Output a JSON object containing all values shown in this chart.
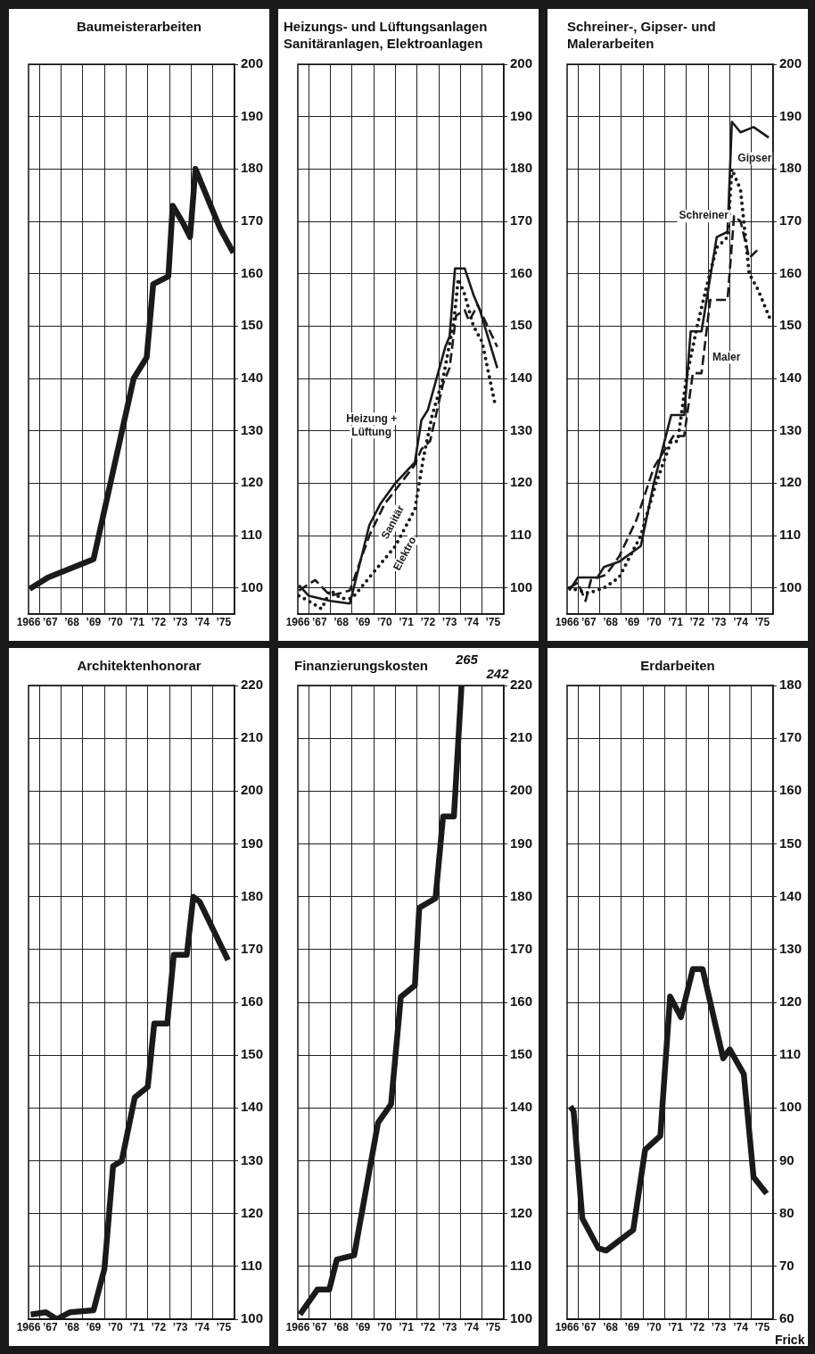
{
  "chart_data": [
    {
      "type": "line",
      "title": "Baumeisterarbeiten",
      "xlim": [
        1966,
        1975.5
      ],
      "ylim": [
        95,
        200
      ],
      "grid": true,
      "xticks": [
        {
          "value": 1966,
          "label": "1966"
        },
        {
          "value": 1966.5,
          "label": null
        },
        {
          "value": 1967,
          "label": "’67"
        },
        {
          "value": 1967.5,
          "label": null
        },
        {
          "value": 1968,
          "label": "’68"
        },
        {
          "value": 1968.5,
          "label": null
        },
        {
          "value": 1969,
          "label": "’69"
        },
        {
          "value": 1969.5,
          "label": null
        },
        {
          "value": 1970,
          "label": "’70"
        },
        {
          "value": 1970.5,
          "label": null
        },
        {
          "value": 1971,
          "label": "’71"
        },
        {
          "value": 1971.5,
          "label": null
        },
        {
          "value": 1972,
          "label": "’72"
        },
        {
          "value": 1972.5,
          "label": null
        },
        {
          "value": 1973,
          "label": "’73"
        },
        {
          "value": 1973.5,
          "label": null
        },
        {
          "value": 1974,
          "label": "’74"
        },
        {
          "value": 1974.5,
          "label": null
        },
        {
          "value": 1975,
          "label": "’75"
        },
        {
          "value": 1975.5,
          "label": null
        }
      ],
      "yticks": [
        100,
        110,
        120,
        130,
        140,
        150,
        160,
        170,
        180,
        190,
        200
      ],
      "series": [
        {
          "color": "#1a1a1a",
          "line_style": "solid",
          "x": [
            1966.05,
            1966.9,
            1969.0,
            1970.85,
            1971.45,
            1971.75,
            1972.45,
            1972.65,
            1973.15,
            1973.45,
            1973.7,
            1974.35,
            1974.85,
            1975.45
          ],
          "values": [
            99.8,
            102,
            105.5,
            140,
            144,
            158,
            159.5,
            173,
            169.5,
            167,
            180,
            173.5,
            168.5,
            164
          ]
        }
      ]
    },
    {
      "type": "line",
      "title": "Heizungs- und Lüftungsanlagen Sanitäranlagen, Elektroanlagen",
      "xlim": [
        1966,
        1975.5
      ],
      "ylim": [
        95,
        200
      ],
      "grid": true,
      "xticks": [
        {
          "value": 1966,
          "label": "1966"
        },
        {
          "value": 1966.5,
          "label": null
        },
        {
          "value": 1967,
          "label": "’67"
        },
        {
          "value": 1967.5,
          "label": null
        },
        {
          "value": 1968,
          "label": "’68"
        },
        {
          "value": 1968.5,
          "label": null
        },
        {
          "value": 1969,
          "label": "’69"
        },
        {
          "value": 1969.5,
          "label": null
        },
        {
          "value": 1970,
          "label": "’70"
        },
        {
          "value": 1970.5,
          "label": null
        },
        {
          "value": 1971,
          "label": "’71"
        },
        {
          "value": 1971.5,
          "label": null
        },
        {
          "value": 1972,
          "label": "’72"
        },
        {
          "value": 1972.5,
          "label": null
        },
        {
          "value": 1973,
          "label": "’73"
        },
        {
          "value": 1973.5,
          "label": null
        },
        {
          "value": 1974,
          "label": "’74"
        },
        {
          "value": 1974.5,
          "label": null
        },
        {
          "value": 1975,
          "label": "’75"
        },
        {
          "value": 1975.5,
          "label": null
        }
      ],
      "yticks": [
        100,
        110,
        120,
        130,
        140,
        150,
        160,
        170,
        180,
        190,
        200
      ],
      "series": [
        {
          "name": "Heizung + Lüftung",
          "color": "#1a1a1a",
          "line_style": "solid",
          "x": [
            1966.05,
            1966.5,
            1967.5,
            1968.4,
            1969.3,
            1969.8,
            1970.5,
            1971.4,
            1971.7,
            1972.0,
            1972.8,
            1973.0,
            1973.25,
            1973.7,
            1974.1,
            1974.4,
            1975.2
          ],
          "values": [
            100.5,
            98.5,
            97.5,
            97,
            112,
            116,
            120,
            124,
            132,
            134,
            146,
            148,
            161,
            161,
            156,
            153,
            142
          ]
        },
        {
          "name": "Sanitär",
          "color": "#1a1a1a",
          "line_style": "dashed",
          "x": [
            1966.05,
            1966.8,
            1967.5,
            1968.4,
            1969.3,
            1970.0,
            1971.4,
            1971.7,
            1972.1,
            1972.7,
            1973.0,
            1973.3,
            1973.7,
            1973.9,
            1974.3,
            1975.2
          ],
          "values": [
            99.5,
            101.5,
            98.5,
            99.5,
            110,
            116,
            123.5,
            126.5,
            128,
            139,
            142,
            152,
            153,
            151,
            154,
            146
          ]
        },
        {
          "name": "Elektro",
          "color": "#1a1a1a",
          "line_style": "dotted",
          "x": [
            1966.05,
            1966.5,
            1967.1,
            1967.5,
            1968.0,
            1968.5,
            1969.5,
            1970.5,
            1971.4,
            1971.8,
            1972.2,
            1972.7,
            1973.2,
            1973.4,
            1973.7,
            1974.1,
            1974.5,
            1975.1
          ],
          "values": [
            98.5,
            97.5,
            96,
            99.5,
            98,
            98,
            103,
            108,
            115,
            125,
            133,
            140,
            151,
            159,
            156,
            150,
            147,
            135
          ]
        }
      ]
    },
    {
      "type": "line",
      "title": "Schreiner-, Gipser- und Malerarbeiten",
      "xlim": [
        1966,
        1975.5
      ],
      "ylim": [
        95,
        200
      ],
      "grid": true,
      "xticks": [
        {
          "value": 1966,
          "label": "1966"
        },
        {
          "value": 1966.5,
          "label": null
        },
        {
          "value": 1967,
          "label": "’67"
        },
        {
          "value": 1967.5,
          "label": null
        },
        {
          "value": 1968,
          "label": "’68"
        },
        {
          "value": 1968.5,
          "label": null
        },
        {
          "value": 1969,
          "label": "’69"
        },
        {
          "value": 1969.5,
          "label": null
        },
        {
          "value": 1970,
          "label": "’70"
        },
        {
          "value": 1970.5,
          "label": null
        },
        {
          "value": 1971,
          "label": "’71"
        },
        {
          "value": 1971.5,
          "label": null
        },
        {
          "value": 1972,
          "label": "’72"
        },
        {
          "value": 1972.5,
          "label": null
        },
        {
          "value": 1973,
          "label": "’73"
        },
        {
          "value": 1973.5,
          "label": null
        },
        {
          "value": 1974,
          "label": "’74"
        },
        {
          "value": 1974.5,
          "label": null
        },
        {
          "value": 1975,
          "label": "’75"
        },
        {
          "value": 1975.5,
          "label": null
        }
      ],
      "yticks": [
        100,
        110,
        120,
        130,
        140,
        150,
        160,
        170,
        180,
        190,
        200
      ],
      "series": [
        {
          "name": "Schreiner",
          "color": "#1a1a1a",
          "line_style": "solid",
          "x": [
            1966.1,
            1966.5,
            1967.4,
            1967.7,
            1968.4,
            1969.4,
            1970.0,
            1970.8,
            1971.4,
            1971.7,
            1972.2,
            1972.9,
            1973.4,
            1973.6,
            1974.0,
            1974.6,
            1975.3
          ],
          "values": [
            99.5,
            102,
            102,
            104,
            105,
            108,
            120,
            133,
            133,
            149,
            149,
            167,
            168,
            189,
            187,
            188,
            186
          ]
        },
        {
          "name": "Gipser",
          "color": "#1a1a1a",
          "line_style": "dotted",
          "x": [
            1966.1,
            1967.0,
            1967.7,
            1968.4,
            1969.4,
            1970.1,
            1970.8,
            1971.1,
            1971.5,
            1972.0,
            1972.4,
            1972.9,
            1973.4,
            1973.6,
            1974.0,
            1974.4,
            1974.8,
            1975.4
          ],
          "values": [
            100,
            99,
            100,
            102,
            110,
            120,
            128,
            128,
            140,
            150,
            157,
            165,
            167,
            180,
            176,
            160,
            157,
            151
          ]
        },
        {
          "name": "Maler",
          "color": "#1a1a1a",
          "line_style": "dashed",
          "x": [
            1966.1,
            1966.5,
            1966.85,
            1967.1,
            1967.8,
            1968.4,
            1969.2,
            1970.0,
            1970.9,
            1971.4,
            1971.8,
            1972.2,
            1972.6,
            1973.4,
            1973.7,
            1974.0,
            1974.4,
            1974.9
          ],
          "values": [
            100,
            101,
            97.5,
            101.5,
            102.5,
            106,
            113,
            123,
            129,
            129,
            141,
            141,
            155,
            155,
            171,
            170,
            163,
            165
          ]
        }
      ]
    },
    {
      "type": "line",
      "title": "Architektenhonorar",
      "xlim": [
        1966,
        1975.5
      ],
      "ylim": [
        100,
        220
      ],
      "grid": true,
      "xticks": [
        {
          "value": 1966,
          "label": "1966"
        },
        {
          "value": 1966.5,
          "label": null
        },
        {
          "value": 1967,
          "label": "’67"
        },
        {
          "value": 1967.5,
          "label": null
        },
        {
          "value": 1968,
          "label": "’68"
        },
        {
          "value": 1968.5,
          "label": null
        },
        {
          "value": 1969,
          "label": "’69"
        },
        {
          "value": 1969.5,
          "label": null
        },
        {
          "value": 1970,
          "label": "’70"
        },
        {
          "value": 1970.5,
          "label": null
        },
        {
          "value": 1971,
          "label": "’71"
        },
        {
          "value": 1971.5,
          "label": null
        },
        {
          "value": 1972,
          "label": "’72"
        },
        {
          "value": 1972.5,
          "label": null
        },
        {
          "value": 1973,
          "label": "’73"
        },
        {
          "value": 1973.5,
          "label": null
        },
        {
          "value": 1974,
          "label": "’74"
        },
        {
          "value": 1974.5,
          "label": null
        },
        {
          "value": 1975,
          "label": "’75"
        },
        {
          "value": 1975.5,
          "label": null
        }
      ],
      "yticks": [
        100,
        110,
        120,
        130,
        140,
        150,
        160,
        170,
        180,
        190,
        200,
        210,
        220
      ],
      "series": [
        {
          "color": "#1a1a1a",
          "line_style": "solid",
          "x": [
            1966.1,
            1966.8,
            1967.3,
            1967.9,
            1969.0,
            1969.5,
            1969.9,
            1970.3,
            1970.9,
            1971.5,
            1971.8,
            1972.4,
            1972.7,
            1973.3,
            1973.6,
            1973.9,
            1975.2
          ],
          "values": [
            100.9,
            101.3,
            100,
            101.3,
            101.7,
            109.5,
            129,
            130,
            142,
            144,
            156,
            156,
            169,
            169,
            180,
            179,
            168
          ]
        }
      ]
    },
    {
      "type": "line",
      "title": "Finanzierungskosten",
      "xlim": [
        1966,
        1975.5
      ],
      "ylim": [
        100,
        220
      ],
      "grid": true,
      "xticks": [
        {
          "value": 1966,
          "label": "1966"
        },
        {
          "value": 1966.5,
          "label": null
        },
        {
          "value": 1967,
          "label": "’67"
        },
        {
          "value": 1967.5,
          "label": null
        },
        {
          "value": 1968,
          "label": "’68"
        },
        {
          "value": 1968.5,
          "label": null
        },
        {
          "value": 1969,
          "label": "’69"
        },
        {
          "value": 1969.5,
          "label": null
        },
        {
          "value": 1970,
          "label": "’70"
        },
        {
          "value": 1970.5,
          "label": null
        },
        {
          "value": 1971,
          "label": "’71"
        },
        {
          "value": 1971.5,
          "label": null
        },
        {
          "value": 1972,
          "label": "’72"
        },
        {
          "value": 1972.5,
          "label": null
        },
        {
          "value": 1973,
          "label": "’73"
        },
        {
          "value": 1973.5,
          "label": null
        },
        {
          "value": 1974,
          "label": "’74"
        },
        {
          "value": 1974.5,
          "label": null
        },
        {
          "value": 1975,
          "label": "’75"
        },
        {
          "value": 1975.5,
          "label": null
        }
      ],
      "yticks": [
        100,
        110,
        120,
        130,
        140,
        150,
        160,
        170,
        180,
        190,
        200,
        210,
        220
      ],
      "annotations": [
        "265",
        "242"
      ],
      "series": [
        {
          "color": "#1a1a1a",
          "line_style": "solid",
          "x": [
            1966.1,
            1966.9,
            1967.45,
            1967.8,
            1968.6,
            1969.7,
            1970.3,
            1970.75,
            1971.4,
            1971.6,
            1972.35,
            1972.7,
            1973.2,
            1973.55
          ],
          "values": [
            100.9,
            105.6,
            105.6,
            111.3,
            112.1,
            137.2,
            140.7,
            161,
            163.2,
            177.9,
            179.7,
            195.2,
            195.2,
            220
          ]
        }
      ]
    },
    {
      "type": "line",
      "title": "Erdarbeiten",
      "xlim": [
        1966,
        1975.5
      ],
      "ylim": [
        60,
        180
      ],
      "grid": true,
      "xticks": [
        {
          "value": 1966,
          "label": "1966"
        },
        {
          "value": 1966.5,
          "label": null
        },
        {
          "value": 1967,
          "label": "’67"
        },
        {
          "value": 1967.5,
          "label": null
        },
        {
          "value": 1968,
          "label": "’68"
        },
        {
          "value": 1968.5,
          "label": null
        },
        {
          "value": 1969,
          "label": "’69"
        },
        {
          "value": 1969.5,
          "label": null
        },
        {
          "value": 1970,
          "label": "’70"
        },
        {
          "value": 1970.5,
          "label": null
        },
        {
          "value": 1971,
          "label": "’71"
        },
        {
          "value": 1971.5,
          "label": null
        },
        {
          "value": 1972,
          "label": "’72"
        },
        {
          "value": 1972.5,
          "label": null
        },
        {
          "value": 1973,
          "label": "’73"
        },
        {
          "value": 1973.5,
          "label": null
        },
        {
          "value": 1974,
          "label": "’74"
        },
        {
          "value": 1974.5,
          "label": null
        },
        {
          "value": 1975,
          "label": "’75"
        },
        {
          "value": 1975.5,
          "label": null
        }
      ],
      "yticks": [
        60,
        70,
        80,
        90,
        100,
        110,
        120,
        130,
        140,
        150,
        160,
        170,
        180
      ],
      "annotations": [
        "Frick"
      ],
      "series": [
        {
          "color": "#1a1a1a",
          "line_style": "solid",
          "x": [
            1966.15,
            1966.3,
            1966.7,
            1967.45,
            1967.8,
            1969.05,
            1969.6,
            1970.3,
            1970.75,
            1971.25,
            1971.8,
            1972.25,
            1973.2,
            1973.5,
            1974.15,
            1974.6,
            1975.2
          ],
          "values": [
            100.3,
            99.4,
            79.1,
            73.4,
            73,
            76.9,
            92.1,
            94.7,
            121.1,
            117.2,
            126.3,
            126.3,
            109.4,
            111.1,
            106.4,
            86.9,
            83.8
          ]
        }
      ]
    }
  ]
}
